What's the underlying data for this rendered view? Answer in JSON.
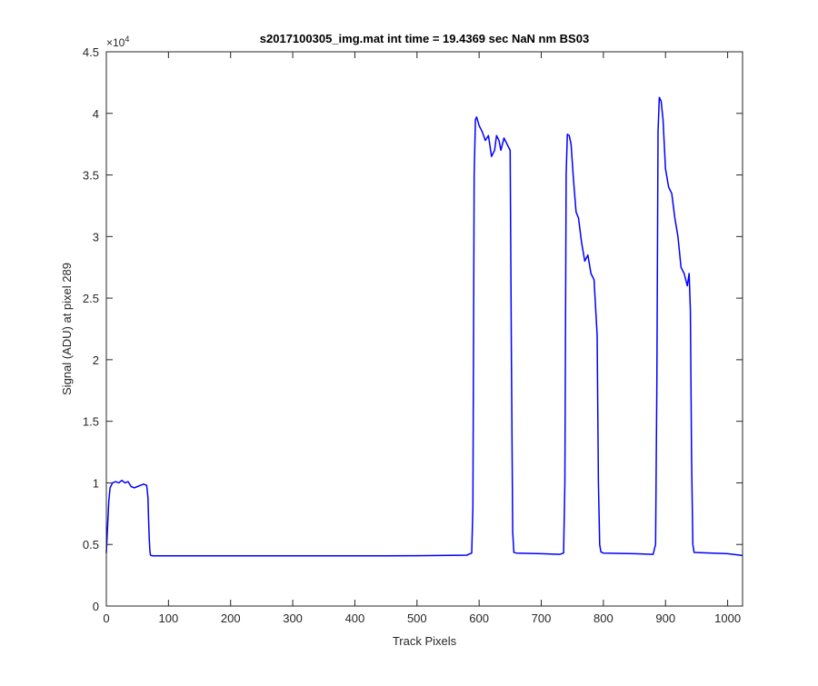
{
  "chart_data": {
    "type": "line",
    "title": "s2017100305_img.mat int time = 19.4369 sec  NaN nm BS03",
    "xlabel": "Track Pixels",
    "ylabel": "Signal (ADU) at pixel 289",
    "xlim": [
      0,
      1024
    ],
    "ylim": [
      0,
      45000
    ],
    "xticks": [
      0,
      100,
      200,
      300,
      400,
      500,
      600,
      700,
      800,
      900,
      1000
    ],
    "yticks": [
      0,
      5000,
      10000,
      15000,
      20000,
      25000,
      30000,
      35000,
      40000,
      45000
    ],
    "ytick_labels": [
      "0",
      "0.5",
      "1",
      "1.5",
      "2",
      "2.5",
      "3",
      "3.5",
      "4",
      "4.5"
    ],
    "y_exponent_base": "×10",
    "y_exponent_power": "4",
    "grid": false,
    "legend": "none",
    "series": [
      {
        "color": "#0000ff",
        "x": [
          0,
          2,
          4,
          6,
          10,
          15,
          20,
          25,
          30,
          35,
          40,
          45,
          50,
          55,
          60,
          65,
          67,
          68,
          69,
          70,
          71,
          72,
          75,
          100,
          150,
          200,
          250,
          300,
          350,
          400,
          450,
          500,
          550,
          580,
          588,
          590,
          592,
          594,
          596,
          600,
          605,
          610,
          615,
          620,
          625,
          628,
          632,
          635,
          640,
          645,
          650,
          652,
          654,
          656,
          660,
          700,
          730,
          736,
          738,
          740,
          742,
          745,
          748,
          752,
          756,
          760,
          765,
          770,
          775,
          780,
          785,
          790,
          792,
          794,
          796,
          800,
          850,
          880,
          884,
          886,
          888,
          890,
          893,
          896,
          900,
          905,
          910,
          915,
          920,
          925,
          930,
          935,
          938,
          940,
          942,
          944,
          946,
          1000,
          1024
        ],
        "y": [
          4300,
          6500,
          8500,
          9600,
          10000,
          10100,
          10000,
          10200,
          10000,
          10100,
          9700,
          9600,
          9700,
          9800,
          9900,
          9800,
          8800,
          7000,
          5500,
          4500,
          4150,
          4100,
          4080,
          4080,
          4070,
          4080,
          4070,
          4080,
          4070,
          4080,
          4080,
          4090,
          4110,
          4130,
          4300,
          8000,
          35000,
          39500,
          39700,
          39000,
          38500,
          37800,
          38200,
          36500,
          37000,
          38200,
          37800,
          37000,
          38000,
          37500,
          37000,
          20000,
          6000,
          4350,
          4300,
          4250,
          4200,
          4300,
          10000,
          35000,
          38300,
          38200,
          37500,
          34500,
          32000,
          31500,
          29500,
          28000,
          28500,
          27000,
          26500,
          22000,
          10000,
          5000,
          4400,
          4300,
          4250,
          4200,
          5000,
          18000,
          38500,
          41300,
          41000,
          39500,
          35500,
          34000,
          33500,
          31500,
          30000,
          27500,
          27000,
          26000,
          27000,
          24000,
          12000,
          5000,
          4350,
          4250,
          4100
        ]
      }
    ]
  }
}
